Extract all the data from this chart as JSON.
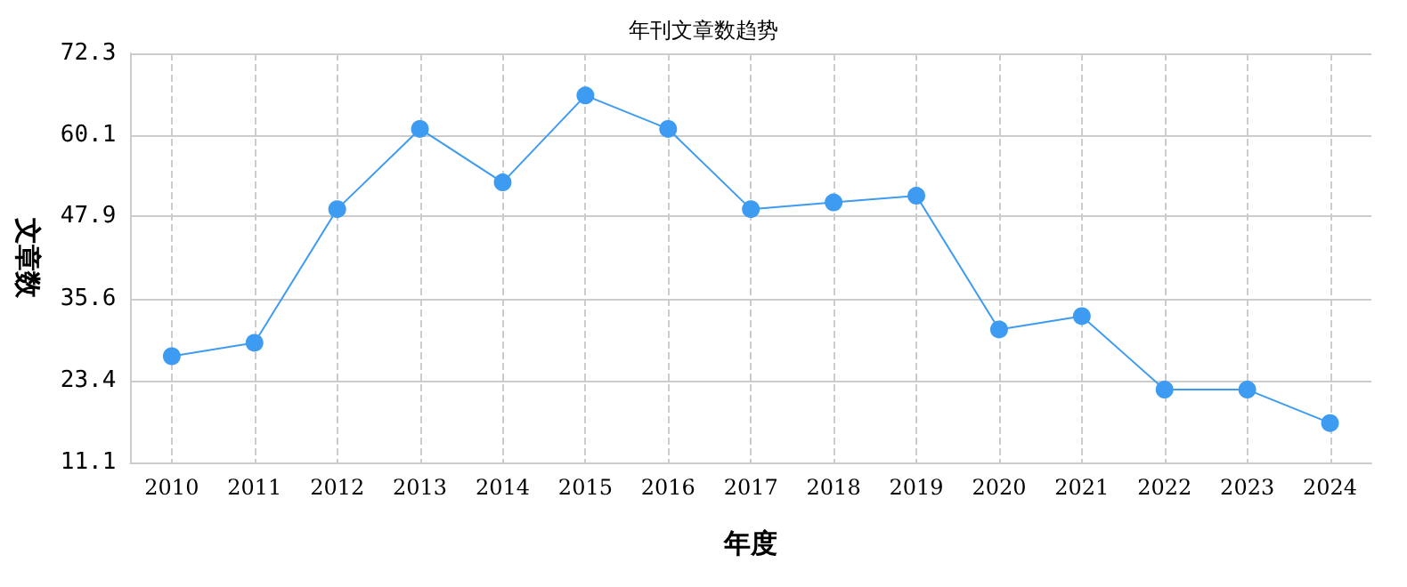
{
  "chart_data": {
    "type": "line",
    "title": "年刊文章数趋势",
    "xlabel": "年度",
    "ylabel": "文章数",
    "categories": [
      "2010",
      "2011",
      "2012",
      "2013",
      "2014",
      "2015",
      "2016",
      "2017",
      "2018",
      "2019",
      "2020",
      "2021",
      "2022",
      "2023",
      "2024"
    ],
    "series": [
      {
        "color": "#3d9bf2",
        "values": [
          27,
          29,
          49,
          61,
          53,
          66,
          61,
          49,
          50,
          51,
          31,
          33,
          22,
          22,
          17
        ]
      }
    ],
    "ylim": [
      11.1,
      72.3
    ],
    "yticks": [
      11.1,
      23.4,
      35.6,
      47.9,
      60.1,
      72.3
    ],
    "grid": true,
    "marker": "circle",
    "line_style": "solid"
  }
}
